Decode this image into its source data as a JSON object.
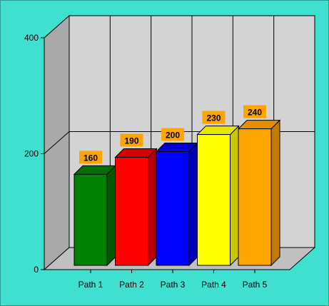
{
  "chart_data": {
    "type": "bar",
    "categories": [
      "Path 1",
      "Path 2",
      "Path 3",
      "Path 4",
      "Path 5"
    ],
    "values": [
      160,
      190,
      200,
      230,
      240
    ],
    "ylim": [
      0,
      400
    ],
    "yticks": [
      0,
      200,
      400
    ],
    "grid": true,
    "legend": "none",
    "colors": [
      "#008000",
      "#ff0000",
      "#0000ff",
      "#ffff00",
      "#ffa500"
    ],
    "side_colors": [
      "#005a00",
      "#b40000",
      "#0000b4",
      "#c8c800",
      "#c27a00"
    ],
    "top_colors": [
      "#006e00",
      "#d20000",
      "#0000d2",
      "#e6e600",
      "#e09000"
    ],
    "label_bg_color": "#ffa500",
    "background_color": "#40e0d0",
    "wall_color": "#d3d3d3",
    "floor_color": "#c0c0c0",
    "side_wall_color": "#a9a9a9"
  }
}
